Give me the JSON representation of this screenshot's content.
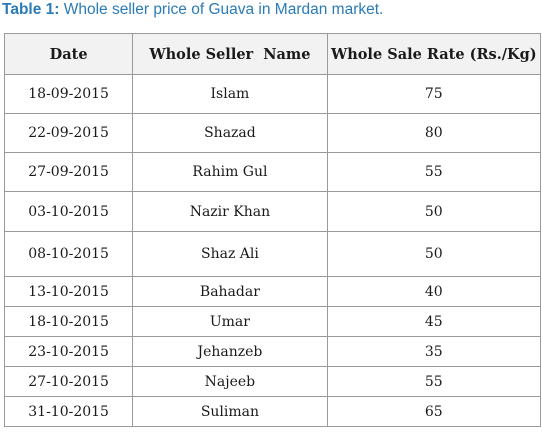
{
  "caption": {
    "label": "Table 1:",
    "text": " Whole seller price of Guava in Mardan market."
  },
  "table": {
    "headers": [
      "Date",
      "Whole Seller  Name",
      "Whole Sale Rate (Rs./Kg)"
    ],
    "rows": [
      {
        "date": "18-09-2015",
        "name": "Islam",
        "rate": "75"
      },
      {
        "date": "22-09-2015",
        "name": "Shazad",
        "rate": "80"
      },
      {
        "date": "27-09-2015",
        "name": "Rahim Gul",
        "rate": "55"
      },
      {
        "date": "03-10-2015",
        "name": "Nazir Khan",
        "rate": "50"
      },
      {
        "date": "08-10-2015",
        "name": "Shaz Ali",
        "rate": "50"
      },
      {
        "date": "13-10-2015",
        "name": "Bahadar",
        "rate": "40"
      },
      {
        "date": "18-10-2015",
        "name": "Umar",
        "rate": "45"
      },
      {
        "date": "23-10-2015",
        "name": "Jehanzeb",
        "rate": "35"
      },
      {
        "date": "27-10-2015",
        "name": "Najeeb",
        "rate": "55"
      },
      {
        "date": "31-10-2015",
        "name": "Suliman",
        "rate": "65"
      }
    ]
  }
}
